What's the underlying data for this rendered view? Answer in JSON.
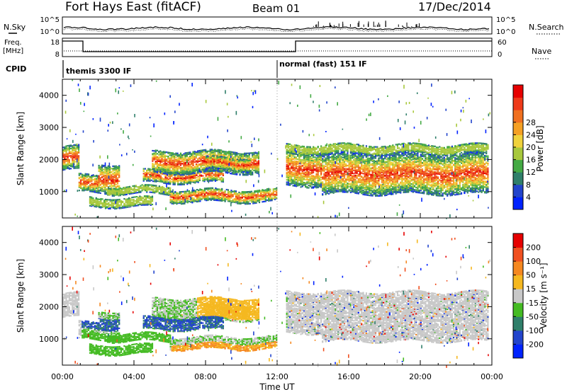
{
  "header": {
    "station": "Fort Hays East (fitACF)",
    "beam": "Beam 01",
    "date": "17/Dec/2014"
  },
  "noise_panel": {
    "left_label": "N.Sky",
    "right_label": "N.Search",
    "left_ticks": [
      "10^5",
      "10^0"
    ],
    "right_ticks": [
      "10^5",
      "10^0"
    ]
  },
  "freq_panel": {
    "left_label_1": "Freq.",
    "left_label_2": "[MHz]",
    "right_label": "Nave",
    "left_ticks": [
      "18",
      "8"
    ],
    "right_ticks": [
      "60",
      "0"
    ]
  },
  "cpid_panel": {
    "label": "CPID",
    "segments": [
      {
        "start_hour": 0,
        "end_hour": 12.5,
        "label": "themis 3300 IF"
      },
      {
        "start_hour": 12.5,
        "end_hour": 24,
        "label": "normal (fast) 151 IF"
      }
    ]
  },
  "chart_data": {
    "type": "heatmap",
    "x_axis": {
      "label": "Time UT",
      "range_hours": [
        0,
        24
      ],
      "ticks": [
        "00:00",
        "04:00",
        "08:00",
        "12:00",
        "16:00",
        "20:00",
        "00:00"
      ],
      "tick_hours": [
        0,
        4,
        8,
        12,
        16,
        20,
        24
      ]
    },
    "y_axis": {
      "label": "Slant Range [km]",
      "range": [
        180,
        4500
      ],
      "ticks": [
        1000,
        2000,
        3000,
        4000
      ]
    },
    "panels": [
      {
        "name": "power",
        "colorbar_label": "Power [dB]",
        "colorbar_ticks": [
          "4",
          "8",
          "12",
          "16",
          "20",
          "24",
          "28"
        ],
        "colorbar_colors": [
          "#0022ff",
          "#2244cc",
          "#2f7f6a",
          "#44aa44",
          "#a8c83c",
          "#f0d23c",
          "#f5a023",
          "#f07020",
          "#ee3a1a",
          "#e60000"
        ]
      },
      {
        "name": "velocity",
        "colorbar_label": "Velocity [m s⁻¹]",
        "colorbar_ticks": [
          "200",
          "100",
          "50",
          "15",
          "-15",
          "-50",
          "-100",
          "-200"
        ],
        "colorbar_colors": [
          "#0022ff",
          "#2244cc",
          "#2f7f6a",
          "#44bb22",
          "#c8c8c8",
          "#f5b820",
          "#f58820",
          "#f05020",
          "#e60000"
        ]
      }
    ],
    "echo_regions": [
      {
        "t0": 0.0,
        "t1": 0.9,
        "r0": 1700,
        "r1": 2450
      },
      {
        "t0": 0.9,
        "t1": 2.0,
        "r0": 1000,
        "r1": 1550
      },
      {
        "t0": 2.0,
        "t1": 3.2,
        "r0": 1000,
        "r1": 1900
      },
      {
        "t0": 2.5,
        "t1": 6.0,
        "r0": 950,
        "r1": 1200
      },
      {
        "t0": 1.5,
        "t1": 5.0,
        "r0": 550,
        "r1": 850
      },
      {
        "t0": 4.5,
        "t1": 9.0,
        "r0": 1300,
        "r1": 1700
      },
      {
        "t0": 5.0,
        "t1": 11.0,
        "r0": 1600,
        "r1": 2300
      },
      {
        "t0": 6.0,
        "t1": 12.0,
        "r0": 700,
        "r1": 1100
      },
      {
        "t0": 8.0,
        "t1": 10.5,
        "r0": 1700,
        "r1": 2100
      },
      {
        "t0": 12.5,
        "t1": 14.5,
        "r0": 1200,
        "r1": 2300
      },
      {
        "t0": 14.5,
        "t1": 23.8,
        "r0": 950,
        "r1": 2200
      },
      {
        "t0": 12.5,
        "t1": 23.8,
        "r0": 2200,
        "r1": 2500
      }
    ]
  }
}
